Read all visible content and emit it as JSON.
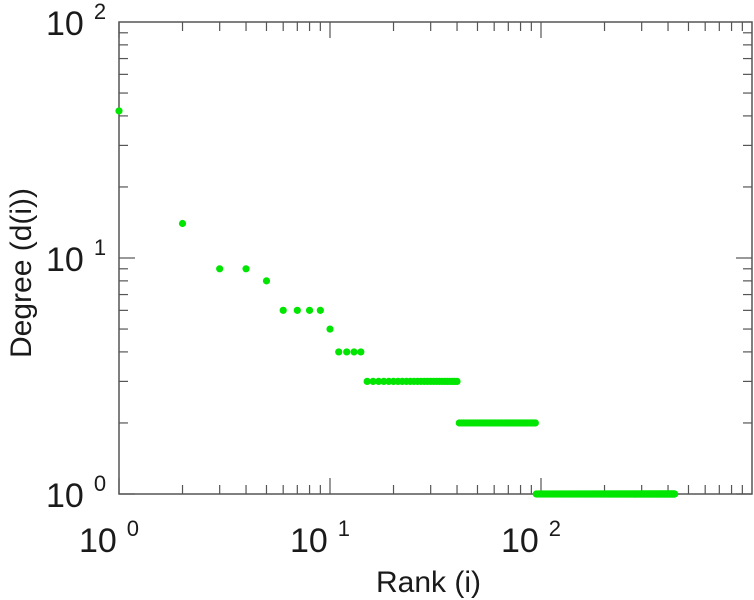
{
  "chart_data": {
    "type": "scatter",
    "x_scale": "log",
    "y_scale": "log",
    "xlim": [
      1,
      1000
    ],
    "ylim": [
      1,
      100
    ],
    "xlabel": "Rank (i)",
    "ylabel": "Degree (d(i))",
    "grid": false,
    "marker_color": "#00e600",
    "x_ticks": [
      {
        "base": "10",
        "exp": "0",
        "value": 1
      },
      {
        "base": "10",
        "exp": "1",
        "value": 10
      },
      {
        "base": "10",
        "exp": "2",
        "value": 100
      }
    ],
    "y_ticks": [
      {
        "base": "10",
        "exp": "0",
        "value": 1
      },
      {
        "base": "10",
        "exp": "1",
        "value": 10
      },
      {
        "base": "10",
        "exp": "2",
        "value": 100
      }
    ],
    "points": [
      {
        "x": 1,
        "y": 42
      },
      {
        "x": 2,
        "y": 14
      },
      {
        "x": 3,
        "y": 9
      },
      {
        "x": 4,
        "y": 9
      },
      {
        "x": 5,
        "y": 8
      },
      {
        "x": 6,
        "y": 6
      },
      {
        "x": 7,
        "y": 6
      },
      {
        "x": 8,
        "y": 6
      },
      {
        "x": 9,
        "y": 6
      },
      {
        "x": 10,
        "y": 5
      },
      {
        "x": 11,
        "y": 4
      },
      {
        "x": 12,
        "y": 4
      },
      {
        "x": 13,
        "y": 4
      },
      {
        "x": 14,
        "y": 4
      }
    ],
    "runs": [
      {
        "x_start": 15,
        "x_end": 40,
        "y": 3
      },
      {
        "x_start": 41,
        "x_end": 94,
        "y": 2
      },
      {
        "x_start": 95,
        "x_end": 430,
        "y": 1
      }
    ]
  }
}
